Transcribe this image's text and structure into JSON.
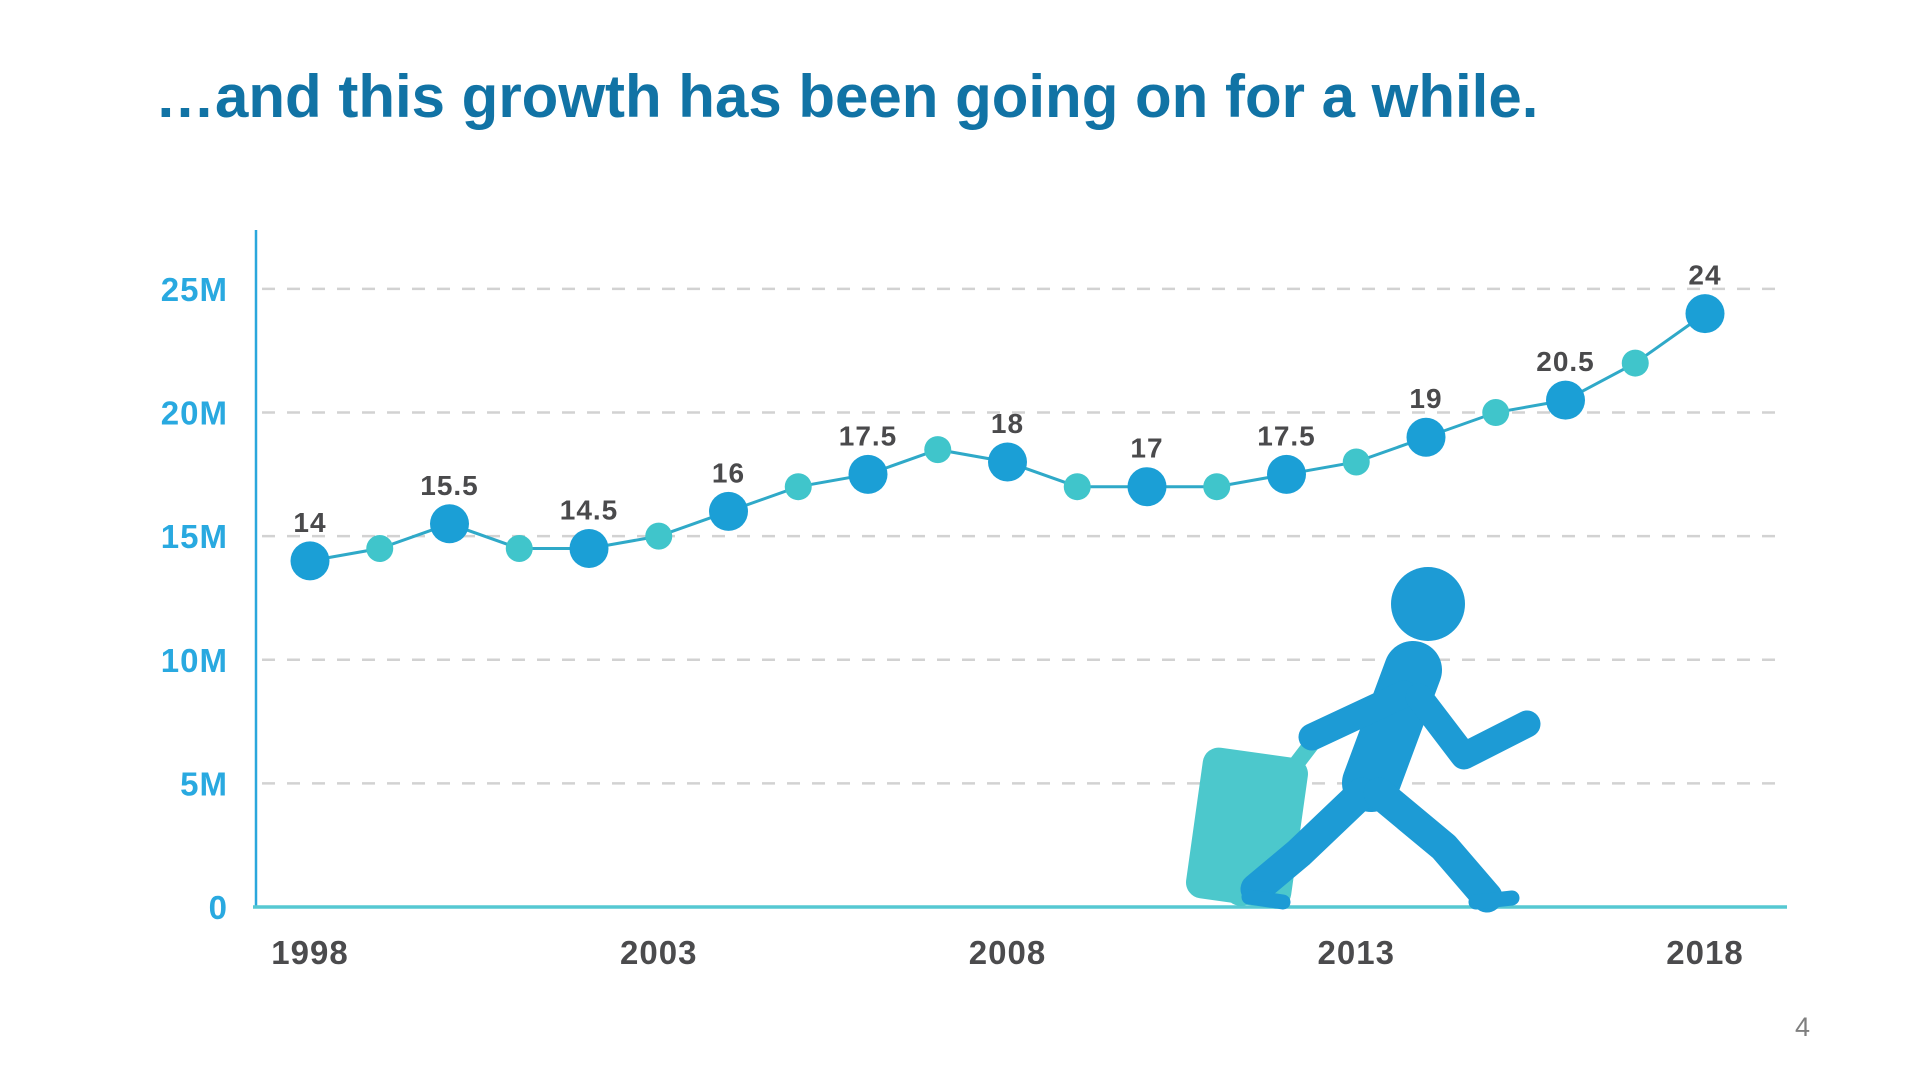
{
  "slide": {
    "title": "…and this growth has been going on for a while.",
    "page_number": "4"
  },
  "colors": {
    "title": "#1173a5",
    "y_axis_line": "#2aa7dc",
    "x_axis_line": "#56c8d2",
    "gridline": "#d2d2d2",
    "series_line": "#2fa9c8",
    "dot_major": "#1b9fd6",
    "dot_minor": "#40c5cb",
    "value_label": "#4a4a4c",
    "y_tick_label": "#29a9e0",
    "x_tick_label": "#4b4b4d",
    "page_number": "#7f7f7f",
    "icon_person": "#1d9bd5",
    "icon_luggage": "#4cc8cc"
  },
  "icons": {
    "traveler": "person-walking-pulling-rolling-suitcase"
  },
  "chart_data": {
    "type": "line",
    "title": "",
    "xlabel": "",
    "ylabel": "",
    "unit": "millions",
    "grid": "dashed-horizontal",
    "legend": "none",
    "ylim": [
      0,
      27.4
    ],
    "x": [
      1998,
      1999,
      2000,
      2001,
      2002,
      2003,
      2004,
      2005,
      2006,
      2007,
      2008,
      2009,
      2010,
      2011,
      2012,
      2013,
      2014,
      2015,
      2016,
      2017,
      2018
    ],
    "values": [
      14,
      14.5,
      15.5,
      14.5,
      14.5,
      15,
      16,
      17,
      17.5,
      18.5,
      18,
      17,
      17,
      17,
      17.5,
      18,
      19,
      20,
      20.5,
      22,
      24
    ],
    "points": [
      {
        "year": 1998,
        "value": 14,
        "major": true,
        "label": "14"
      },
      {
        "year": 1999,
        "value": 14.5,
        "major": false
      },
      {
        "year": 2000,
        "value": 15.5,
        "major": true,
        "label": "15.5"
      },
      {
        "year": 2001,
        "value": 14.5,
        "major": false
      },
      {
        "year": 2002,
        "value": 14.5,
        "major": true,
        "label": "14.5"
      },
      {
        "year": 2003,
        "value": 15,
        "major": false
      },
      {
        "year": 2004,
        "value": 16,
        "major": true,
        "label": "16"
      },
      {
        "year": 2005,
        "value": 17,
        "major": false
      },
      {
        "year": 2006,
        "value": 17.5,
        "major": true,
        "label": "17.5"
      },
      {
        "year": 2007,
        "value": 18.5,
        "major": false
      },
      {
        "year": 2008,
        "value": 18,
        "major": true,
        "label": "18"
      },
      {
        "year": 2009,
        "value": 17,
        "major": false
      },
      {
        "year": 2010,
        "value": 17,
        "major": true,
        "label": "17"
      },
      {
        "year": 2011,
        "value": 17,
        "major": false
      },
      {
        "year": 2012,
        "value": 17.5,
        "major": true,
        "label": "17.5"
      },
      {
        "year": 2013,
        "value": 18,
        "major": false
      },
      {
        "year": 2014,
        "value": 19,
        "major": true,
        "label": "19"
      },
      {
        "year": 2015,
        "value": 20,
        "major": false
      },
      {
        "year": 2016,
        "value": 20.5,
        "major": true,
        "label": "20.5"
      },
      {
        "year": 2017,
        "value": 22,
        "major": false
      },
      {
        "year": 2018,
        "value": 24,
        "major": true,
        "label": "24"
      }
    ],
    "y_ticks": [
      {
        "label": "25M",
        "value": 25
      },
      {
        "label": "20M",
        "value": 20
      },
      {
        "label": "15M",
        "value": 15
      },
      {
        "label": "10M",
        "value": 10
      },
      {
        "label": "5M",
        "value": 5
      },
      {
        "label": "0",
        "value": 0
      }
    ],
    "x_ticks": [
      {
        "label": "1998",
        "year": 1998
      },
      {
        "label": "2003",
        "year": 2003
      },
      {
        "label": "2008",
        "year": 2008
      },
      {
        "label": "2013",
        "year": 2013
      },
      {
        "label": "2018",
        "year": 2018
      }
    ]
  }
}
